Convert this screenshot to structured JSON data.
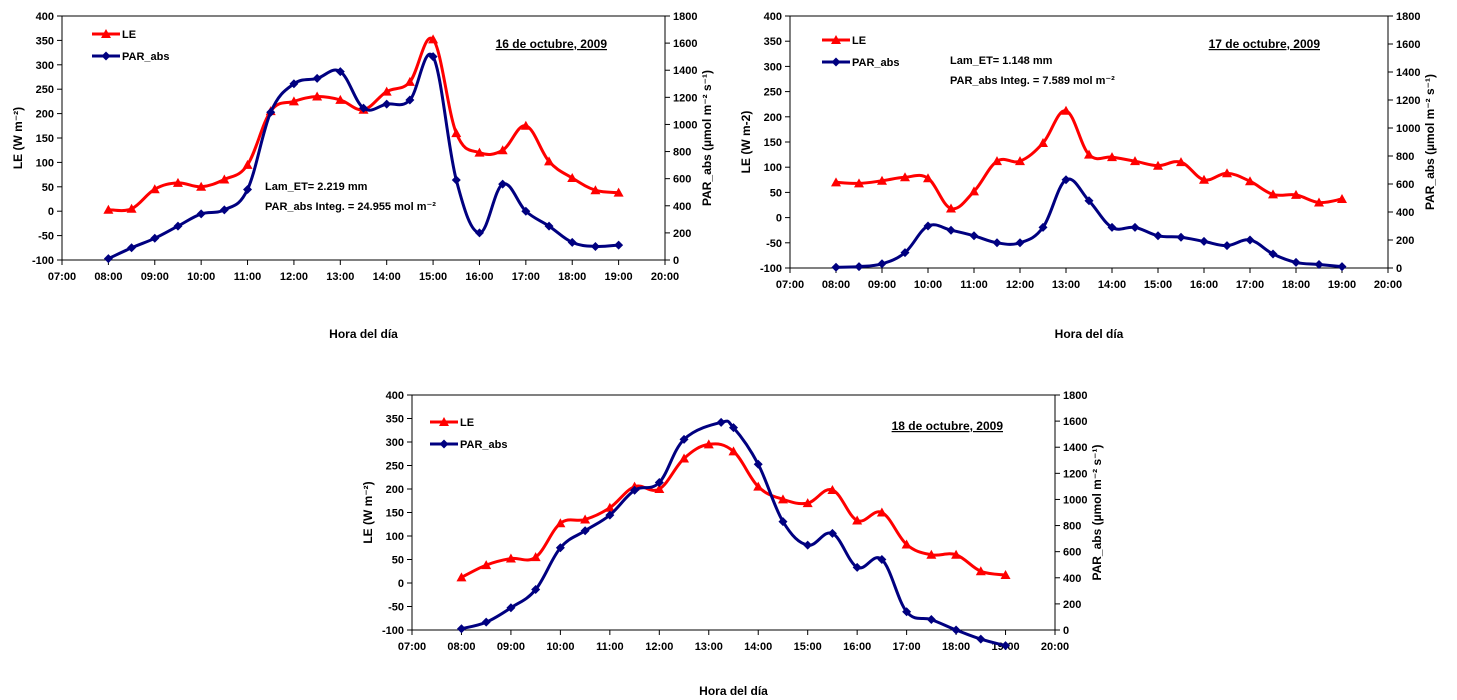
{
  "chart_data": [
    {
      "type": "line",
      "title": "16 de octubre, 2009",
      "xlabel": "Hora del día",
      "ylabel_left": "LE (W m⁻²)",
      "ylabel_right": "PAR_abs (µmol m⁻² s⁻¹)",
      "xlim": [
        "07:00",
        "20:00"
      ],
      "x_ticks": [
        "07:00",
        "08:00",
        "09:00",
        "10:00",
        "11:00",
        "12:00",
        "13:00",
        "14:00",
        "15:00",
        "16:00",
        "17:00",
        "18:00",
        "19:00",
        "20:00"
      ],
      "ylim_left": [
        -100,
        400
      ],
      "y_ticks_left": [
        -100,
        -50,
        0,
        50,
        100,
        150,
        200,
        250,
        300,
        350,
        400
      ],
      "ylim_right": [
        0,
        1800
      ],
      "y_ticks_right": [
        0,
        200,
        400,
        600,
        800,
        1000,
        1200,
        1400,
        1600,
        1800
      ],
      "annotations": [
        "Lam_ET= 2.219 mm",
        "PAR_abs Integ. =  24.955 mol m⁻²"
      ],
      "legend": "top-left",
      "x": [
        "08:00",
        "08:30",
        "09:00",
        "09:30",
        "10:00",
        "10:30",
        "11:00",
        "11:30",
        "12:00",
        "12:30",
        "13:00",
        "13:30",
        "14:00",
        "14:30",
        "15:00",
        "15:30",
        "16:00",
        "16:30",
        "17:00",
        "17:30",
        "18:00",
        "18:30",
        "19:00"
      ],
      "series": [
        {
          "name": "LE",
          "axis": "left",
          "color": "#ff0000",
          "marker": "triangle",
          "values": [
            3,
            5,
            45,
            58,
            50,
            65,
            95,
            205,
            225,
            235,
            228,
            208,
            245,
            265,
            352,
            160,
            120,
            125,
            175,
            102,
            68,
            43,
            38
          ]
        },
        {
          "name": "PAR_abs",
          "axis": "right",
          "color": "#000080",
          "marker": "diamond",
          "values": [
            10,
            90,
            160,
            250,
            340,
            370,
            520,
            1090,
            1300,
            1340,
            1390,
            1120,
            1150,
            1180,
            1500,
            590,
            200,
            560,
            360,
            250,
            130,
            100,
            110
          ]
        }
      ]
    },
    {
      "type": "line",
      "title": "17 de octubre, 2009",
      "xlabel": "Hora del día",
      "ylabel_left": "LE (W m-2)",
      "ylabel_right": "PAR_abs (µmol m⁻² s⁻¹)",
      "xlim": [
        "07:00",
        "20:00"
      ],
      "x_ticks": [
        "07:00",
        "08:00",
        "09:00",
        "10:00",
        "11:00",
        "12:00",
        "13:00",
        "14:00",
        "15:00",
        "16:00",
        "17:00",
        "18:00",
        "19:00",
        "20:00"
      ],
      "ylim_left": [
        -100,
        400
      ],
      "y_ticks_left": [
        -100,
        -50,
        0,
        50,
        100,
        150,
        200,
        250,
        300,
        350,
        400
      ],
      "ylim_right": [
        0,
        1800
      ],
      "y_ticks_right": [
        0,
        200,
        400,
        600,
        800,
        1000,
        1200,
        1400,
        1600,
        1800
      ],
      "annotations": [
        "Lam_ET= 1.148 mm",
        "PAR_abs Integ. =  7.589 mol m⁻²"
      ],
      "legend": "top-left",
      "x": [
        "08:00",
        "08:30",
        "09:00",
        "09:30",
        "10:00",
        "10:30",
        "11:00",
        "11:30",
        "12:00",
        "12:30",
        "13:00",
        "13:30",
        "14:00",
        "14:30",
        "15:00",
        "15:30",
        "16:00",
        "16:30",
        "17:00",
        "17:30",
        "18:00",
        "18:30",
        "19:00"
      ],
      "series": [
        {
          "name": "LE",
          "axis": "left",
          "color": "#ff0000",
          "marker": "triangle",
          "values": [
            70,
            68,
            73,
            80,
            78,
            18,
            52,
            112,
            112,
            148,
            212,
            125,
            120,
            112,
            103,
            110,
            75,
            88,
            72,
            46,
            45,
            30,
            37
          ]
        },
        {
          "name": "PAR_abs",
          "axis": "right",
          "color": "#000080",
          "marker": "diamond",
          "values": [
            5,
            10,
            30,
            110,
            300,
            270,
            230,
            180,
            180,
            290,
            630,
            480,
            290,
            290,
            230,
            220,
            190,
            160,
            200,
            100,
            40,
            25,
            10
          ]
        }
      ]
    },
    {
      "type": "line",
      "title": "18 de octubre, 2009",
      "xlabel": "Hora del día",
      "ylabel_left": "LE (W m⁻²)",
      "ylabel_right": "PAR_abs (µmol m⁻² s⁻¹)",
      "xlim": [
        "07:00",
        "20:00"
      ],
      "x_ticks": [
        "07:00",
        "08:00",
        "09:00",
        "10:00",
        "11:00",
        "12:00",
        "13:00",
        "14:00",
        "15:00",
        "16:00",
        "17:00",
        "18:00",
        "19:00",
        "20:00"
      ],
      "ylim_left": [
        -100,
        400
      ],
      "y_ticks_left": [
        -100,
        -50,
        0,
        50,
        100,
        150,
        200,
        250,
        300,
        350,
        400
      ],
      "ylim_right": [
        0,
        1800
      ],
      "y_ticks_right": [
        0,
        200,
        400,
        600,
        800,
        1000,
        1200,
        1400,
        1600,
        1800
      ],
      "annotations": [],
      "legend": "top-left",
      "x": [
        "08:00",
        "08:30",
        "09:00",
        "09:30",
        "10:00",
        "10:30",
        "11:00",
        "11:30",
        "12:00",
        "12:30",
        "13:00",
        "13:15",
        "13:30",
        "14:00",
        "14:30",
        "15:00",
        "15:30",
        "16:00",
        "16:30",
        "17:00",
        "17:30",
        "18:00",
        "18:30",
        "19:00"
      ],
      "series": [
        {
          "name": "LE",
          "axis": "left",
          "color": "#ff0000",
          "marker": "triangle",
          "values": [
            12,
            38,
            52,
            55,
            127,
            135,
            160,
            205,
            200,
            265,
            295,
            null,
            280,
            205,
            178,
            170,
            198,
            133,
            150,
            82,
            60,
            60,
            25,
            17
          ]
        },
        {
          "name": "PAR_abs",
          "axis": "right",
          "color": "#000080",
          "marker": "diamond",
          "values": [
            10,
            60,
            170,
            310,
            630,
            760,
            880,
            1070,
            1130,
            1460,
            null,
            1590,
            1550,
            1270,
            830,
            650,
            740,
            480,
            540,
            140,
            80,
            0,
            -70,
            -120
          ]
        }
      ]
    }
  ]
}
